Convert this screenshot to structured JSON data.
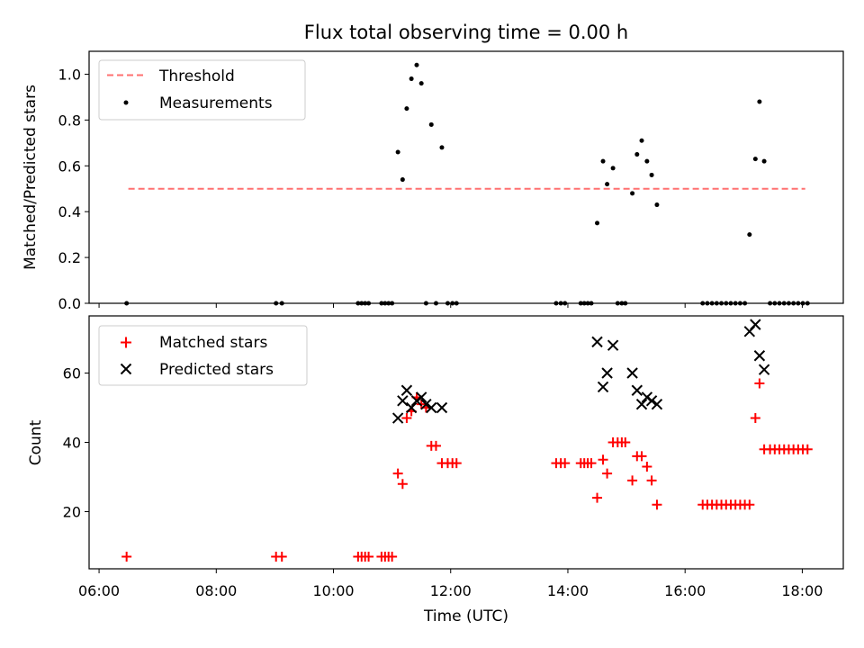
{
  "chart_data": [
    {
      "type": "scatter",
      "title": "Flux total observing time = 0.00 h",
      "xlabel": "",
      "ylabel": "Matched/Predicted stars",
      "xlim": [
        5.83,
        18.7
      ],
      "ylim": [
        0.0,
        1.1
      ],
      "yticks": [
        0.0,
        0.2,
        0.4,
        0.6,
        0.8,
        1.0
      ],
      "ytick_labels": [
        "0.0",
        "0.2",
        "0.4",
        "0.6",
        "0.8",
        "1.0"
      ],
      "grid": false,
      "legend": "upper-left",
      "threshold": {
        "name": "Threshold",
        "value": 0.5,
        "x_range": [
          6.5,
          18.05
        ],
        "color": "#ff7070",
        "style": "dashed"
      },
      "series": [
        {
          "name": "Measurements",
          "marker": "dot",
          "color": "#000000",
          "points": [
            [
              6.47,
              0.0
            ],
            [
              9.02,
              0.0
            ],
            [
              9.12,
              0.0
            ],
            [
              10.42,
              0.0
            ],
            [
              10.48,
              0.0
            ],
            [
              10.54,
              0.0
            ],
            [
              10.6,
              0.0
            ],
            [
              10.82,
              0.0
            ],
            [
              10.88,
              0.0
            ],
            [
              10.94,
              0.0
            ],
            [
              11.0,
              0.0
            ],
            [
              11.1,
              0.66
            ],
            [
              11.18,
              0.54
            ],
            [
              11.25,
              0.85
            ],
            [
              11.33,
              0.98
            ],
            [
              11.42,
              1.04
            ],
            [
              11.5,
              0.96
            ],
            [
              11.58,
              0.0
            ],
            [
              11.67,
              0.78
            ],
            [
              11.75,
              0.0
            ],
            [
              11.85,
              0.68
            ],
            [
              11.95,
              0.0
            ],
            [
              12.03,
              0.0
            ],
            [
              12.1,
              0.0
            ],
            [
              13.8,
              0.0
            ],
            [
              13.88,
              0.0
            ],
            [
              13.95,
              0.0
            ],
            [
              14.22,
              0.0
            ],
            [
              14.28,
              0.0
            ],
            [
              14.34,
              0.0
            ],
            [
              14.4,
              0.0
            ],
            [
              14.5,
              0.35
            ],
            [
              14.6,
              0.62
            ],
            [
              14.67,
              0.52
            ],
            [
              14.77,
              0.59
            ],
            [
              14.85,
              0.0
            ],
            [
              14.92,
              0.0
            ],
            [
              14.98,
              0.0
            ],
            [
              15.1,
              0.48
            ],
            [
              15.18,
              0.65
            ],
            [
              15.26,
              0.71
            ],
            [
              15.35,
              0.62
            ],
            [
              15.43,
              0.56
            ],
            [
              15.52,
              0.43
            ],
            [
              16.3,
              0.0
            ],
            [
              16.38,
              0.0
            ],
            [
              16.46,
              0.0
            ],
            [
              16.54,
              0.0
            ],
            [
              16.62,
              0.0
            ],
            [
              16.7,
              0.0
            ],
            [
              16.78,
              0.0
            ],
            [
              16.86,
              0.0
            ],
            [
              16.94,
              0.0
            ],
            [
              17.02,
              0.0
            ],
            [
              17.1,
              0.3
            ],
            [
              17.2,
              0.63
            ],
            [
              17.27,
              0.88
            ],
            [
              17.35,
              0.62
            ],
            [
              17.45,
              0.0
            ],
            [
              17.53,
              0.0
            ],
            [
              17.61,
              0.0
            ],
            [
              17.69,
              0.0
            ],
            [
              17.77,
              0.0
            ],
            [
              17.85,
              0.0
            ],
            [
              17.93,
              0.0
            ],
            [
              18.01,
              0.0
            ],
            [
              18.09,
              0.0
            ]
          ]
        }
      ]
    },
    {
      "type": "scatter",
      "title": "",
      "xlabel": "Time (UTC)",
      "ylabel": "Count",
      "xlim": [
        5.83,
        18.7
      ],
      "ylim": [
        3.5,
        76.5
      ],
      "xticks": [
        6,
        8,
        10,
        12,
        14,
        16,
        18
      ],
      "xtick_labels": [
        "06:00",
        "08:00",
        "10:00",
        "12:00",
        "14:00",
        "16:00",
        "18:00"
      ],
      "yticks": [
        20,
        40,
        60
      ],
      "ytick_labels": [
        "20",
        "40",
        "60"
      ],
      "grid": false,
      "legend": "upper-left",
      "series": [
        {
          "name": "Matched stars",
          "marker": "plus",
          "color": "#ff0000",
          "points": [
            [
              6.47,
              7
            ],
            [
              9.02,
              7
            ],
            [
              9.12,
              7
            ],
            [
              10.42,
              7
            ],
            [
              10.48,
              7
            ],
            [
              10.54,
              7
            ],
            [
              10.6,
              7
            ],
            [
              10.82,
              7
            ],
            [
              10.88,
              7
            ],
            [
              10.94,
              7
            ],
            [
              11.0,
              7
            ],
            [
              11.1,
              31
            ],
            [
              11.18,
              28
            ],
            [
              11.25,
              47
            ],
            [
              11.33,
              49
            ],
            [
              11.42,
              53
            ],
            [
              11.5,
              51
            ],
            [
              11.58,
              50
            ],
            [
              11.67,
              39
            ],
            [
              11.75,
              39
            ],
            [
              11.85,
              34
            ],
            [
              11.95,
              34
            ],
            [
              12.03,
              34
            ],
            [
              12.1,
              34
            ],
            [
              13.8,
              34
            ],
            [
              13.88,
              34
            ],
            [
              13.95,
              34
            ],
            [
              14.22,
              34
            ],
            [
              14.28,
              34
            ],
            [
              14.34,
              34
            ],
            [
              14.4,
              34
            ],
            [
              14.5,
              24
            ],
            [
              14.6,
              35
            ],
            [
              14.67,
              31
            ],
            [
              14.77,
              40
            ],
            [
              14.85,
              40
            ],
            [
              14.92,
              40
            ],
            [
              14.98,
              40
            ],
            [
              15.1,
              29
            ],
            [
              15.18,
              36
            ],
            [
              15.26,
              36
            ],
            [
              15.35,
              33
            ],
            [
              15.43,
              29
            ],
            [
              15.52,
              22
            ],
            [
              16.3,
              22
            ],
            [
              16.38,
              22
            ],
            [
              16.46,
              22
            ],
            [
              16.54,
              22
            ],
            [
              16.62,
              22
            ],
            [
              16.7,
              22
            ],
            [
              16.78,
              22
            ],
            [
              16.86,
              22
            ],
            [
              16.94,
              22
            ],
            [
              17.02,
              22
            ],
            [
              17.1,
              22
            ],
            [
              17.2,
              47
            ],
            [
              17.27,
              57
            ],
            [
              17.35,
              38
            ],
            [
              17.45,
              38
            ],
            [
              17.53,
              38
            ],
            [
              17.61,
              38
            ],
            [
              17.69,
              38
            ],
            [
              17.77,
              38
            ],
            [
              17.85,
              38
            ],
            [
              17.93,
              38
            ],
            [
              18.01,
              38
            ],
            [
              18.09,
              38
            ]
          ]
        },
        {
          "name": "Predicted stars",
          "marker": "x",
          "color": "#000000",
          "points": [
            [
              11.1,
              47
            ],
            [
              11.18,
              52
            ],
            [
              11.25,
              55
            ],
            [
              11.33,
              50
            ],
            [
              11.42,
              52
            ],
            [
              11.5,
              53
            ],
            [
              11.58,
              51
            ],
            [
              11.67,
              50
            ],
            [
              11.85,
              50
            ],
            [
              14.5,
              69
            ],
            [
              14.6,
              56
            ],
            [
              14.67,
              60
            ],
            [
              14.77,
              68
            ],
            [
              15.1,
              60
            ],
            [
              15.18,
              55
            ],
            [
              15.26,
              51
            ],
            [
              15.35,
              53
            ],
            [
              15.43,
              52
            ],
            [
              15.52,
              51
            ],
            [
              17.1,
              72
            ],
            [
              17.2,
              74
            ],
            [
              17.27,
              65
            ],
            [
              17.35,
              61
            ]
          ]
        }
      ]
    }
  ]
}
